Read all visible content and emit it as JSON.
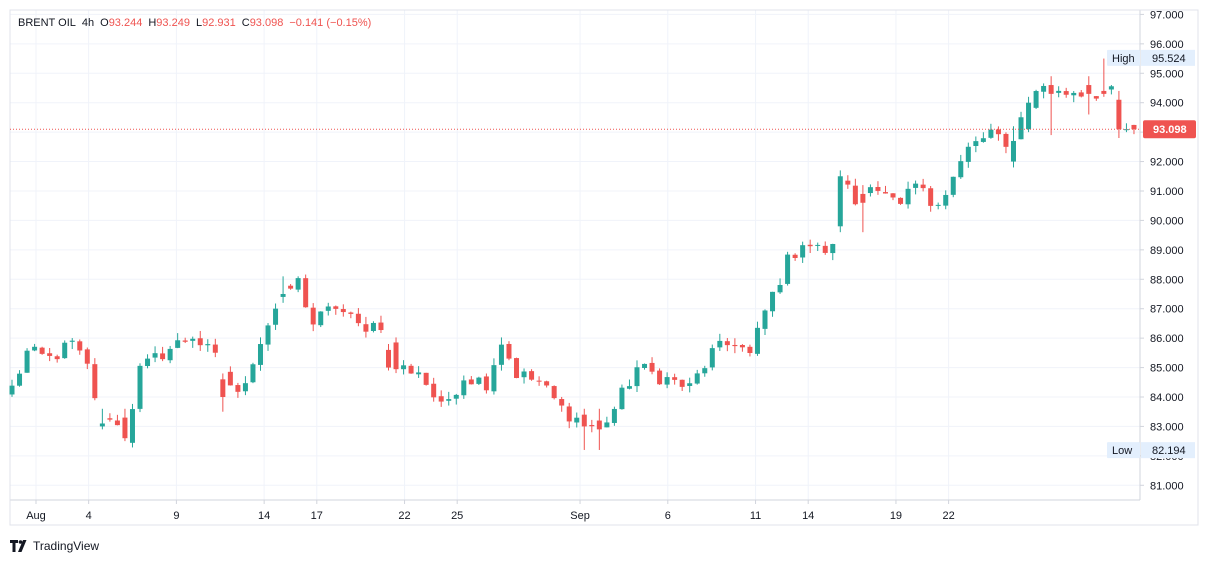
{
  "header": {
    "symbol": "BRENT OIL",
    "interval": "4h",
    "open_label": "O",
    "open": "93.244",
    "high_label": "H",
    "high": "93.249",
    "low_label": "L",
    "low": "92.931",
    "close_label": "C",
    "close": "93.098",
    "change": "−0.141 (−0.15%)"
  },
  "footer": {
    "brand": "TradingView"
  },
  "colors": {
    "up": "#26a69a",
    "down": "#ef5350",
    "grid": "#f0f3fa",
    "axis_text": "#131722",
    "badge_bg": "#e3effd",
    "price_line": "#ef5350"
  },
  "chart_data": {
    "type": "candlestick",
    "title": "BRENT OIL · 4h",
    "ylim": [
      80.5,
      97.15
    ],
    "y_ticks": [
      "81.000",
      "82.000",
      "83.000",
      "84.000",
      "85.000",
      "86.000",
      "87.000",
      "88.000",
      "89.000",
      "90.000",
      "91.000",
      "92.000",
      "93.000",
      "94.000",
      "95.000",
      "96.000",
      "97.000"
    ],
    "x_ticks": [
      {
        "label": "Aug",
        "day": 1
      },
      {
        "label": "4",
        "day": 4
      },
      {
        "label": "9",
        "day": 9
      },
      {
        "label": "14",
        "day": 14
      },
      {
        "label": "17",
        "day": 17
      },
      {
        "label": "22",
        "day": 22
      },
      {
        "label": "25",
        "day": 25
      },
      {
        "label": "Sep",
        "day": 32
      },
      {
        "label": "6",
        "day": 37
      },
      {
        "label": "11",
        "day": 42
      },
      {
        "label": "14",
        "day": 45
      },
      {
        "label": "19",
        "day": 50
      },
      {
        "label": "22",
        "day": 53
      }
    ],
    "last_price": "93.098",
    "high_marker": {
      "label": "High",
      "value": "95.524"
    },
    "low_marker": {
      "label": "Low",
      "value": "82.194"
    },
    "anchors": [
      [
        0,
        84.3
      ],
      [
        2,
        85.5
      ],
      [
        5,
        85.3
      ],
      [
        8,
        85.8
      ],
      [
        10,
        85.0
      ],
      [
        12,
        83.1
      ],
      [
        13,
        83.4
      ],
      [
        15,
        82.6
      ],
      [
        17,
        84.9
      ],
      [
        20,
        85.5
      ],
      [
        24,
        86.1
      ],
      [
        27,
        85.3
      ],
      [
        30,
        84.0
      ],
      [
        32,
        85.3
      ],
      [
        34,
        86.5
      ],
      [
        36,
        87.5
      ],
      [
        38,
        87.9
      ],
      [
        40,
        86.5
      ],
      [
        43,
        87.1
      ],
      [
        46,
        86.4
      ],
      [
        49,
        86.5
      ],
      [
        51,
        85.0
      ],
      [
        54,
        84.9
      ],
      [
        57,
        83.6
      ],
      [
        60,
        84.7
      ],
      [
        63,
        84.5
      ],
      [
        65,
        85.9
      ],
      [
        67,
        84.8
      ],
      [
        70,
        84.5
      ],
      [
        73,
        83.6
      ],
      [
        76,
        83.1
      ],
      [
        78,
        82.9
      ],
      [
        80,
        83.6
      ],
      [
        83,
        85.0
      ],
      [
        86,
        84.7
      ],
      [
        90,
        84.3
      ],
      [
        93,
        85.5
      ],
      [
        96,
        85.9
      ],
      [
        98,
        85.4
      ],
      [
        100,
        86.9
      ],
      [
        103,
        88.6
      ],
      [
        105,
        89.3
      ],
      [
        107,
        89.0
      ],
      [
        109,
        89.0
      ],
      [
        110,
        91.5
      ],
      [
        112,
        90.6
      ],
      [
        114,
        91.4
      ],
      [
        116,
        90.8
      ],
      [
        118,
        90.4
      ],
      [
        120,
        91.2
      ],
      [
        122,
        90.6
      ],
      [
        124,
        91.0
      ],
      [
        127,
        92.4
      ],
      [
        130,
        93.0
      ],
      [
        132,
        92.4
      ],
      [
        135,
        94.0
      ],
      [
        137,
        94.6
      ],
      [
        139,
        94.3
      ],
      [
        141,
        94.4
      ],
      [
        143,
        94.3
      ],
      [
        145,
        94.4
      ],
      [
        146,
        94.3
      ],
      [
        148,
        93.1
      ],
      [
        149,
        93.1
      ]
    ],
    "highlights": [
      [
        12,
        83.0,
        83.6,
        82.9,
        83.1
      ],
      [
        15,
        83.3,
        83.6,
        82.5,
        82.6
      ],
      [
        28,
        84.6,
        84.8,
        83.5,
        84.0
      ],
      [
        36,
        87.4,
        88.1,
        87.2,
        87.5
      ],
      [
        50,
        85.6,
        85.8,
        84.9,
        85.0
      ],
      [
        76,
        83.4,
        83.6,
        82.2,
        83.0
      ],
      [
        78,
        83.2,
        83.6,
        82.2,
        82.9
      ],
      [
        110,
        89.8,
        91.7,
        89.6,
        91.5
      ],
      [
        113,
        90.9,
        91.2,
        89.6,
        90.6
      ],
      [
        133,
        92.0,
        93.2,
        91.8,
        92.7
      ],
      [
        135,
        93.1,
        94.2,
        93.0,
        94.0
      ],
      [
        138,
        94.6,
        94.9,
        92.9,
        94.3
      ],
      [
        143,
        94.6,
        94.9,
        93.6,
        94.3
      ],
      [
        145,
        94.4,
        95.5,
        94.2,
        94.3
      ],
      [
        147,
        94.1,
        94.4,
        92.8,
        93.1
      ],
      [
        148,
        93.1,
        93.3,
        93.0,
        93.1
      ],
      [
        149,
        93.244,
        93.249,
        92.931,
        93.098
      ]
    ]
  }
}
